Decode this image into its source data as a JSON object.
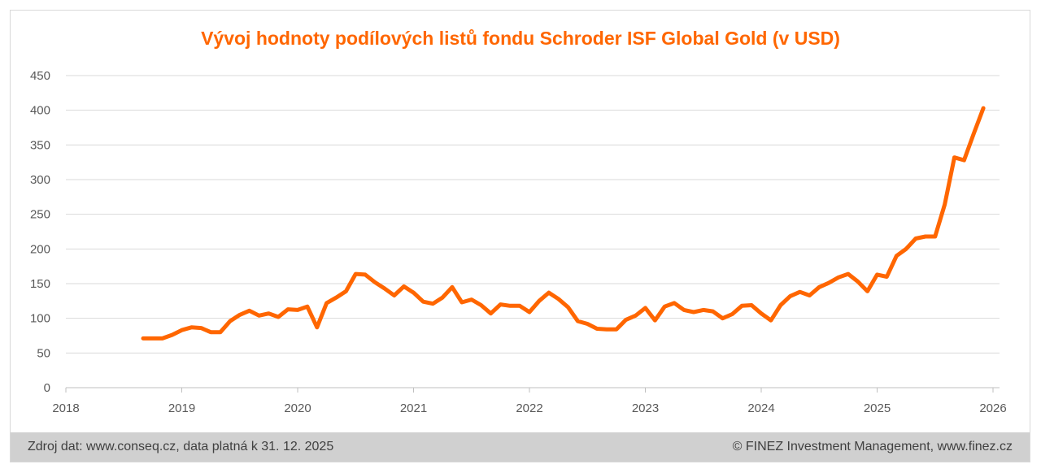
{
  "chart_data": {
    "type": "line",
    "title": "Vývoj hodnoty podílových listů fondu Schroder ISF Global Gold (v USD)",
    "xlabel": "",
    "ylabel": "",
    "xlim": [
      2018,
      2026
    ],
    "ylim": [
      0,
      450
    ],
    "yticks": [
      "0",
      "50",
      "100",
      "150",
      "200",
      "250",
      "300",
      "350",
      "400",
      "450"
    ],
    "xticks": [
      "2018",
      "2019",
      "2020",
      "2021",
      "2022",
      "2023",
      "2024",
      "2025",
      "2026"
    ],
    "grid": true,
    "color": "#ff6600",
    "start": "2018-09",
    "frequency": "monthly",
    "values": [
      71,
      71,
      71,
      76,
      83,
      87,
      86,
      80,
      80,
      96,
      105,
      111,
      104,
      107,
      102,
      113,
      112,
      117,
      87,
      122,
      130,
      139,
      164,
      163,
      152,
      143,
      133,
      146,
      137,
      124,
      121,
      130,
      145,
      123,
      127,
      119,
      107,
      120,
      118,
      118,
      109,
      125,
      137,
      128,
      116,
      96,
      92,
      85,
      84,
      84,
      98,
      104,
      115,
      97,
      117,
      122,
      112,
      109,
      112,
      110,
      100,
      106,
      118,
      119,
      107,
      97,
      119,
      132,
      138,
      133,
      145,
      151,
      159,
      164,
      153,
      139,
      163,
      160,
      190,
      200,
      215,
      218,
      218,
      264,
      332,
      328,
      366,
      403
    ]
  },
  "footer": {
    "source": "Zdroj dat: www.conseq.cz, data platná k 31. 12. 2025",
    "copyright": "© FINEZ Investment Management, www.finez.cz"
  }
}
